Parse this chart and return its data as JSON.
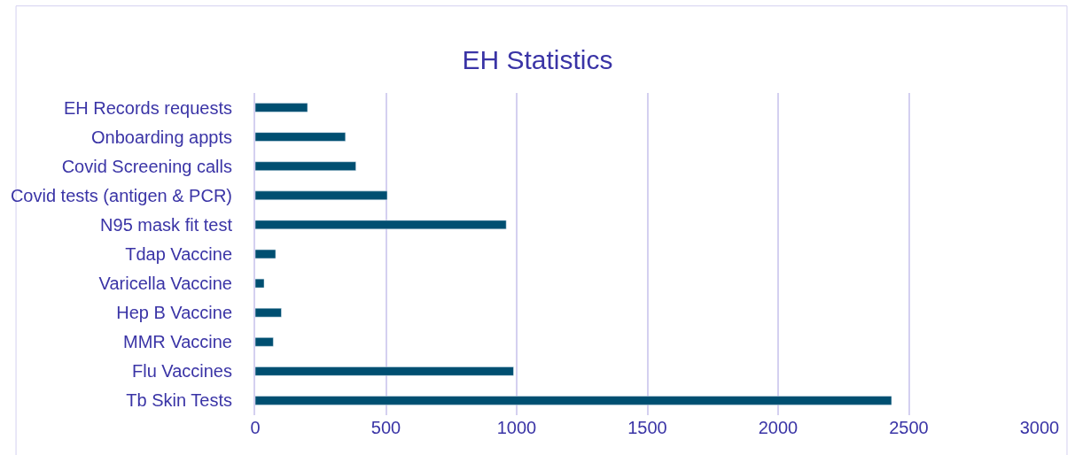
{
  "chart_data": {
    "type": "bar",
    "orientation": "horizontal",
    "title": "EH Statistics",
    "categories": [
      "EH Records requests",
      "Onboarding appts",
      "Covid Screening calls",
      "Covid tests (antigen & PCR)",
      "N95 mask fit test",
      "Tdap Vaccine",
      "Varicella Vaccine",
      "Hep B Vaccine",
      "MMR Vaccine",
      "Flu Vaccines",
      "Tb Skin Tests"
    ],
    "values": [
      200,
      345,
      385,
      505,
      960,
      78,
      34,
      100,
      69,
      988,
      2434
    ],
    "color": "#004f71",
    "xlim": [
      0,
      3000
    ],
    "xticks": [
      0,
      500,
      1000,
      1500,
      2000,
      2500,
      3000
    ],
    "grid": "x"
  }
}
